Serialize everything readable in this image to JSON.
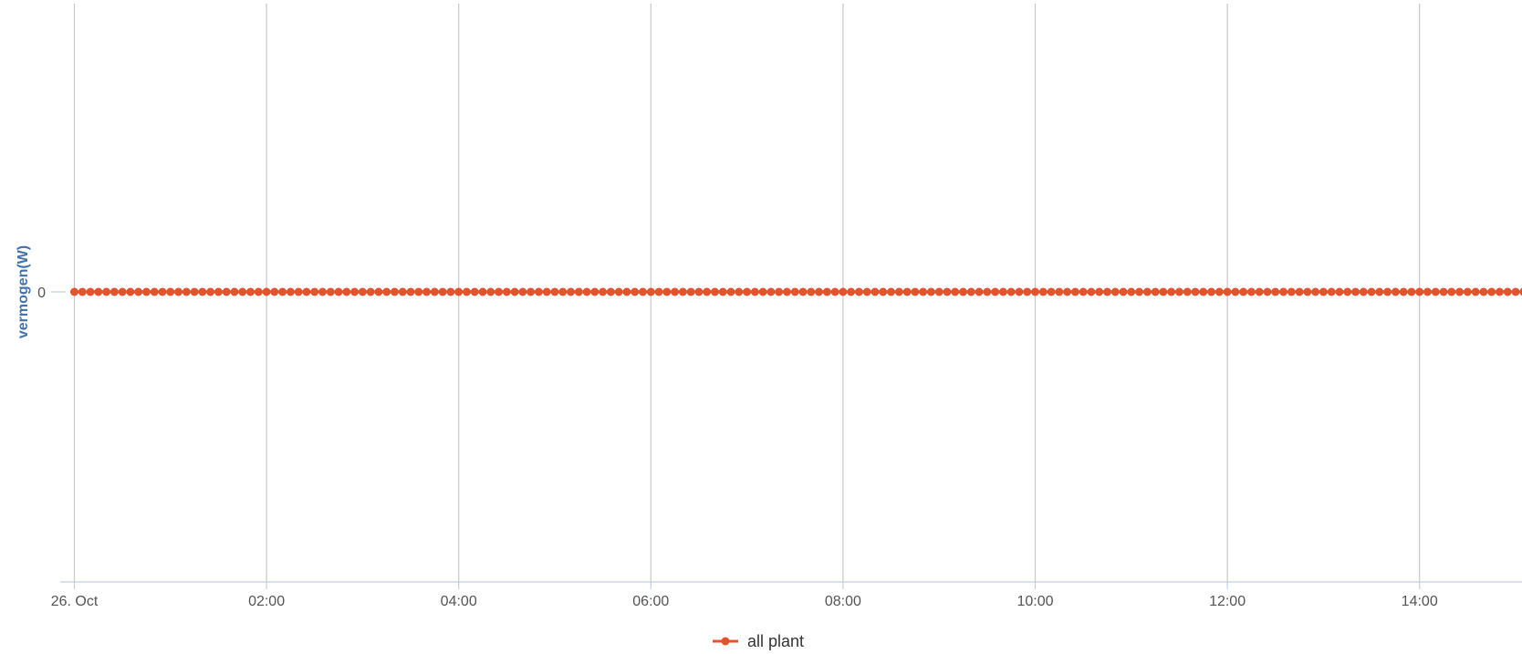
{
  "chart_data": {
    "type": "line",
    "title": "",
    "xlabel": "",
    "ylabel": "vermogen(W)",
    "x_start": "26. Oct 00:00",
    "x_end": "26. Oct 15:10",
    "x_interval_minutes": 5,
    "x_tick_labels": [
      "26. Oct",
      "02:00",
      "04:00",
      "06:00",
      "08:00",
      "10:00",
      "12:00",
      "14:00"
    ],
    "y_tick_labels": [
      "0"
    ],
    "ylim": [
      -1,
      1
    ],
    "grid": "vertical",
    "legend_position": "bottom-center",
    "series": [
      {
        "name": "all plant",
        "color": "#e0552e",
        "marker": "circle",
        "constant_value": 0
      }
    ]
  },
  "legend": {
    "items": [
      {
        "label": "all plant",
        "color": "#e0552e"
      }
    ]
  }
}
